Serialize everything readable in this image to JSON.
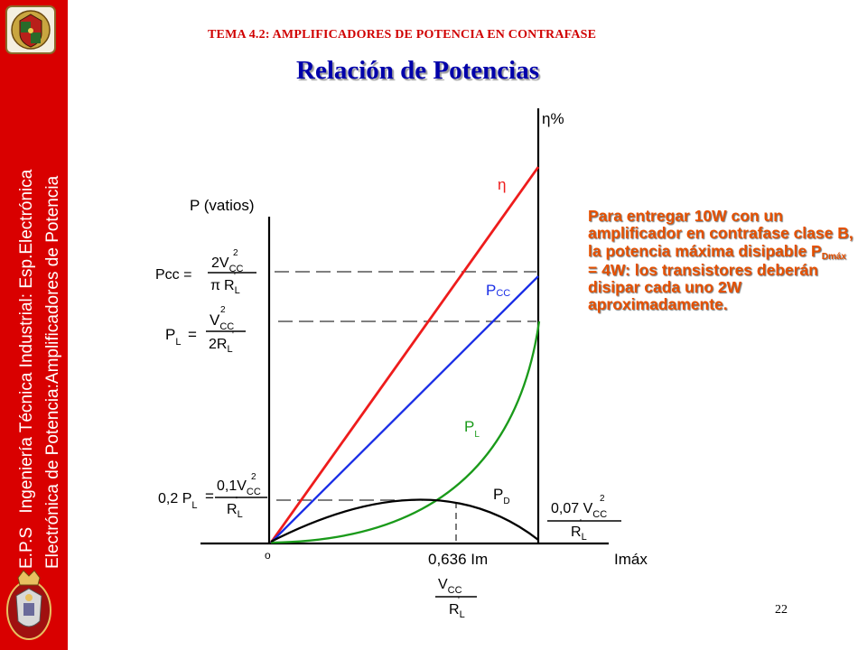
{
  "sidebar": {
    "line1_prefix": "E.P.S",
    "line1_rest": "Ingeniería Técnica Industrial: Esp.Electrónica",
    "line2": "Electrónica de Potencia:Amplificadores de Potencia"
  },
  "header": {
    "topic": "TEMA 4.2: AMPLIFICADORES DE POTENCIA EN CONTRAFASE",
    "title": "Relación de Potencias"
  },
  "note": {
    "part1": "Para entregar 10W con un amplificador en contrafase clase B, la potencia máxima disipable P",
    "subscript": "Dmáx",
    "part2": " = 4W: los transistores deberán disipar cada uno 2W aproximadamente."
  },
  "graph": {
    "axis_left_label": "P (vatios)",
    "axis_right_label": "η%",
    "origin_label": "o",
    "x_end_label": "Imáx",
    "x_mid_label": "0,636 Im",
    "curve_labels": {
      "eta": "η",
      "pcc": "P",
      "pcc_sub": "CC",
      "pl": "P",
      "pl_sub": "L",
      "pd": "P",
      "pd_sub": "D"
    },
    "colors": {
      "eta": "#ee1c1c",
      "pcc": "#1a2ee6",
      "pl": "#1a9a1a",
      "pd": "#000000"
    }
  },
  "formulas": {
    "pcc": {
      "lhs": "Pcc =",
      "num": "2V",
      "num_sub": "CC",
      "num_sup": "2",
      "den_pi": "π",
      "den": "R",
      "den_sub": "L",
      "den_prime": "'"
    },
    "pl": {
      "lhs_p": "P",
      "lhs_sub": "L",
      "lhs_eq": "=",
      "num": "V",
      "num_sub": "CC",
      "num_sup": "2",
      "den": "2R",
      "den_sub": "L",
      "den_prime": "'"
    },
    "pl02": {
      "lhs_coef": "0,2 P",
      "lhs_sub": "L",
      "lhs_eq": "=",
      "num": "0,1V",
      "num_sub": "CC",
      "num_sup": "2",
      "den": "R",
      "den_sub": "L",
      "den_prime": "'"
    },
    "pd_max": {
      "num": "0,07 V",
      "num_sub": "CC",
      "num_sup": "2",
      "den": "R",
      "den_sub": "L",
      "den_prime": "'"
    },
    "x_axis": {
      "num": "V",
      "num_sub": "CC",
      "den": "R",
      "den_sub": "L",
      "den_prime": "'"
    }
  },
  "page_number": "22"
}
